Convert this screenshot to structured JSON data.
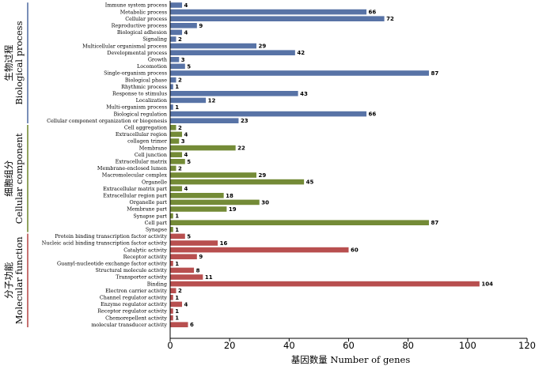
{
  "chart_data": {
    "type": "bar",
    "orientation": "horizontal",
    "xlabel": "基因数量 Number of genes",
    "xlim": [
      0,
      120
    ],
    "xticks": [
      0,
      20,
      40,
      60,
      80,
      100,
      120
    ],
    "groups": [
      {
        "key": "bp",
        "name_zh": "生物过程",
        "name_en": "Biological process",
        "color": "#5873a6",
        "categories": [
          "Immune system process",
          "Metabolic process",
          "Cellular process",
          "Reproductive process",
          "Biological adhesion",
          "Signaling",
          "Multicellular organismal process",
          "Developmental process",
          "Growth",
          "Locomotion",
          "Single-organism process",
          "Biological phase",
          "Rhythmic process",
          "Response to stimulus",
          "Localization",
          "Multi-organism process",
          "Biological regulation",
          "Cellular component organization or biogenesis"
        ],
        "values": [
          4,
          66,
          72,
          9,
          4,
          2,
          29,
          42,
          3,
          5,
          87,
          2,
          1,
          43,
          12,
          1,
          66,
          23
        ]
      },
      {
        "key": "cc",
        "name_zh": "细胞组分",
        "name_en": "Cellular component",
        "color": "#748b37",
        "categories": [
          "Cell aggregation",
          "Extracellular region",
          "collagen trimer",
          "Membrane",
          "Cell junction",
          "Extracellular matrix",
          "Membrane-enclosed lumen",
          "Macromolecular complex",
          "Organelle",
          "Extracellular matrix part",
          "Extracellular region part",
          "Organelle part",
          "Membrane part",
          "Synapse part",
          "Cell part",
          "Synapse"
        ],
        "values": [
          2,
          4,
          3,
          22,
          4,
          5,
          2,
          29,
          45,
          4,
          18,
          30,
          19,
          1,
          87,
          1
        ]
      },
      {
        "key": "mf",
        "name_zh": "分子功能",
        "name_en": "Molecular function",
        "color": "#b84f4f",
        "categories": [
          "Protein binding transcription factor activity",
          "Nucleic acid binding transcription factor activity",
          "Catalytic activity",
          "Receptor activity",
          "Guanyl-nucleotide exchange factor activity",
          "Structural molecule activity",
          "Transporter activity",
          "Binding",
          "Electron carrier activity",
          "Channel regulator activity",
          "Enzyme regulator activity",
          "Receptor regulator activity",
          "Chemorepellent activity",
          "molecular transducer activity"
        ],
        "values": [
          5,
          16,
          60,
          9,
          1,
          8,
          11,
          104,
          2,
          1,
          4,
          1,
          1,
          6
        ]
      }
    ]
  }
}
